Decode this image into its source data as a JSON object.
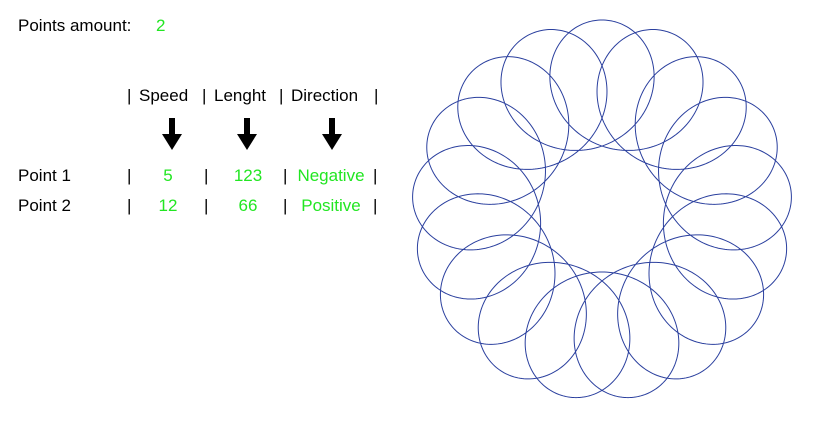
{
  "points_amount": {
    "label": "Points amount:",
    "value": "2"
  },
  "table": {
    "separator": "|",
    "headers": [
      "Speed",
      "Lenght",
      "Direction"
    ],
    "rows": [
      {
        "name": "Point 1",
        "speed": "5",
        "length": "123",
        "direction": "Negative"
      },
      {
        "name": "Point 2",
        "speed": "12",
        "length": "66",
        "direction": "Positive"
      }
    ]
  },
  "icons": {
    "header_arrows": "arrow-down-icon"
  },
  "colors": {
    "value_text": "#22e622",
    "curve": "#2a3f9e",
    "background": "#ffffff"
  },
  "pattern": {
    "symmetry_fold": 17
  }
}
